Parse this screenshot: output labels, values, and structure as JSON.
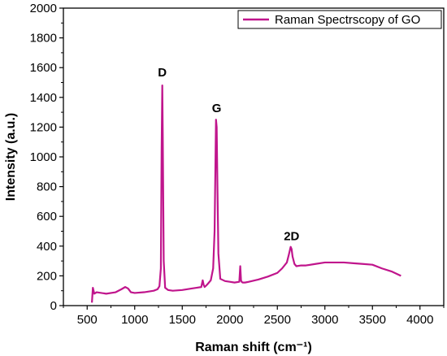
{
  "chart_data": {
    "type": "line",
    "xlabel": "Raman shift (cm⁻¹)",
    "ylabel": "Intensity (a.u.)",
    "xlim": [
      250,
      4250
    ],
    "ylim": [
      0,
      2000
    ],
    "x_ticks": [
      500,
      1000,
      1500,
      2000,
      2500,
      3000,
      3500,
      4000
    ],
    "y_ticks": [
      0,
      200,
      400,
      600,
      800,
      1000,
      1200,
      1400,
      1600,
      1800,
      2000
    ],
    "grid": false,
    "legend_position": "top-right",
    "series": [
      {
        "name": "Raman Spectrscopy of GO",
        "color": "#c0158c",
        "x": [
          550,
          560,
          575,
          600,
          700,
          800,
          860,
          900,
          930,
          960,
          1000,
          1100,
          1200,
          1240,
          1260,
          1275,
          1283,
          1290,
          1295,
          1305,
          1320,
          1350,
          1400,
          1500,
          1600,
          1650,
          1700,
          1715,
          1725,
          1735,
          1760,
          1800,
          1825,
          1840,
          1850,
          1855,
          1862,
          1870,
          1880,
          1900,
          1950,
          2000,
          2050,
          2100,
          2110,
          2118,
          2125,
          2135,
          2160,
          2200,
          2300,
          2400,
          2500,
          2550,
          2600,
          2620,
          2640,
          2650,
          2660,
          2680,
          2700,
          2750,
          2800,
          2900,
          3000,
          3100,
          3200,
          3300,
          3400,
          3500,
          3600,
          3700,
          3800
        ],
        "y": [
          20,
          120,
          80,
          90,
          80,
          90,
          110,
          125,
          115,
          90,
          85,
          90,
          100,
          110,
          130,
          250,
          1050,
          1480,
          1150,
          300,
          120,
          105,
          100,
          105,
          115,
          120,
          125,
          170,
          140,
          125,
          140,
          170,
          250,
          500,
          1000,
          1250,
          1200,
          800,
          350,
          180,
          165,
          160,
          155,
          160,
          265,
          170,
          160,
          155,
          155,
          160,
          175,
          195,
          220,
          250,
          290,
          340,
          395,
          380,
          330,
          280,
          265,
          270,
          270,
          280,
          290,
          290,
          290,
          285,
          280,
          275,
          250,
          230,
          200
        ]
      }
    ],
    "annotations": [
      {
        "text": "D",
        "x": 1290,
        "y": 1540
      },
      {
        "text": "G",
        "x": 1862,
        "y": 1300
      },
      {
        "text": "2D",
        "x": 2650,
        "y": 440
      }
    ]
  }
}
